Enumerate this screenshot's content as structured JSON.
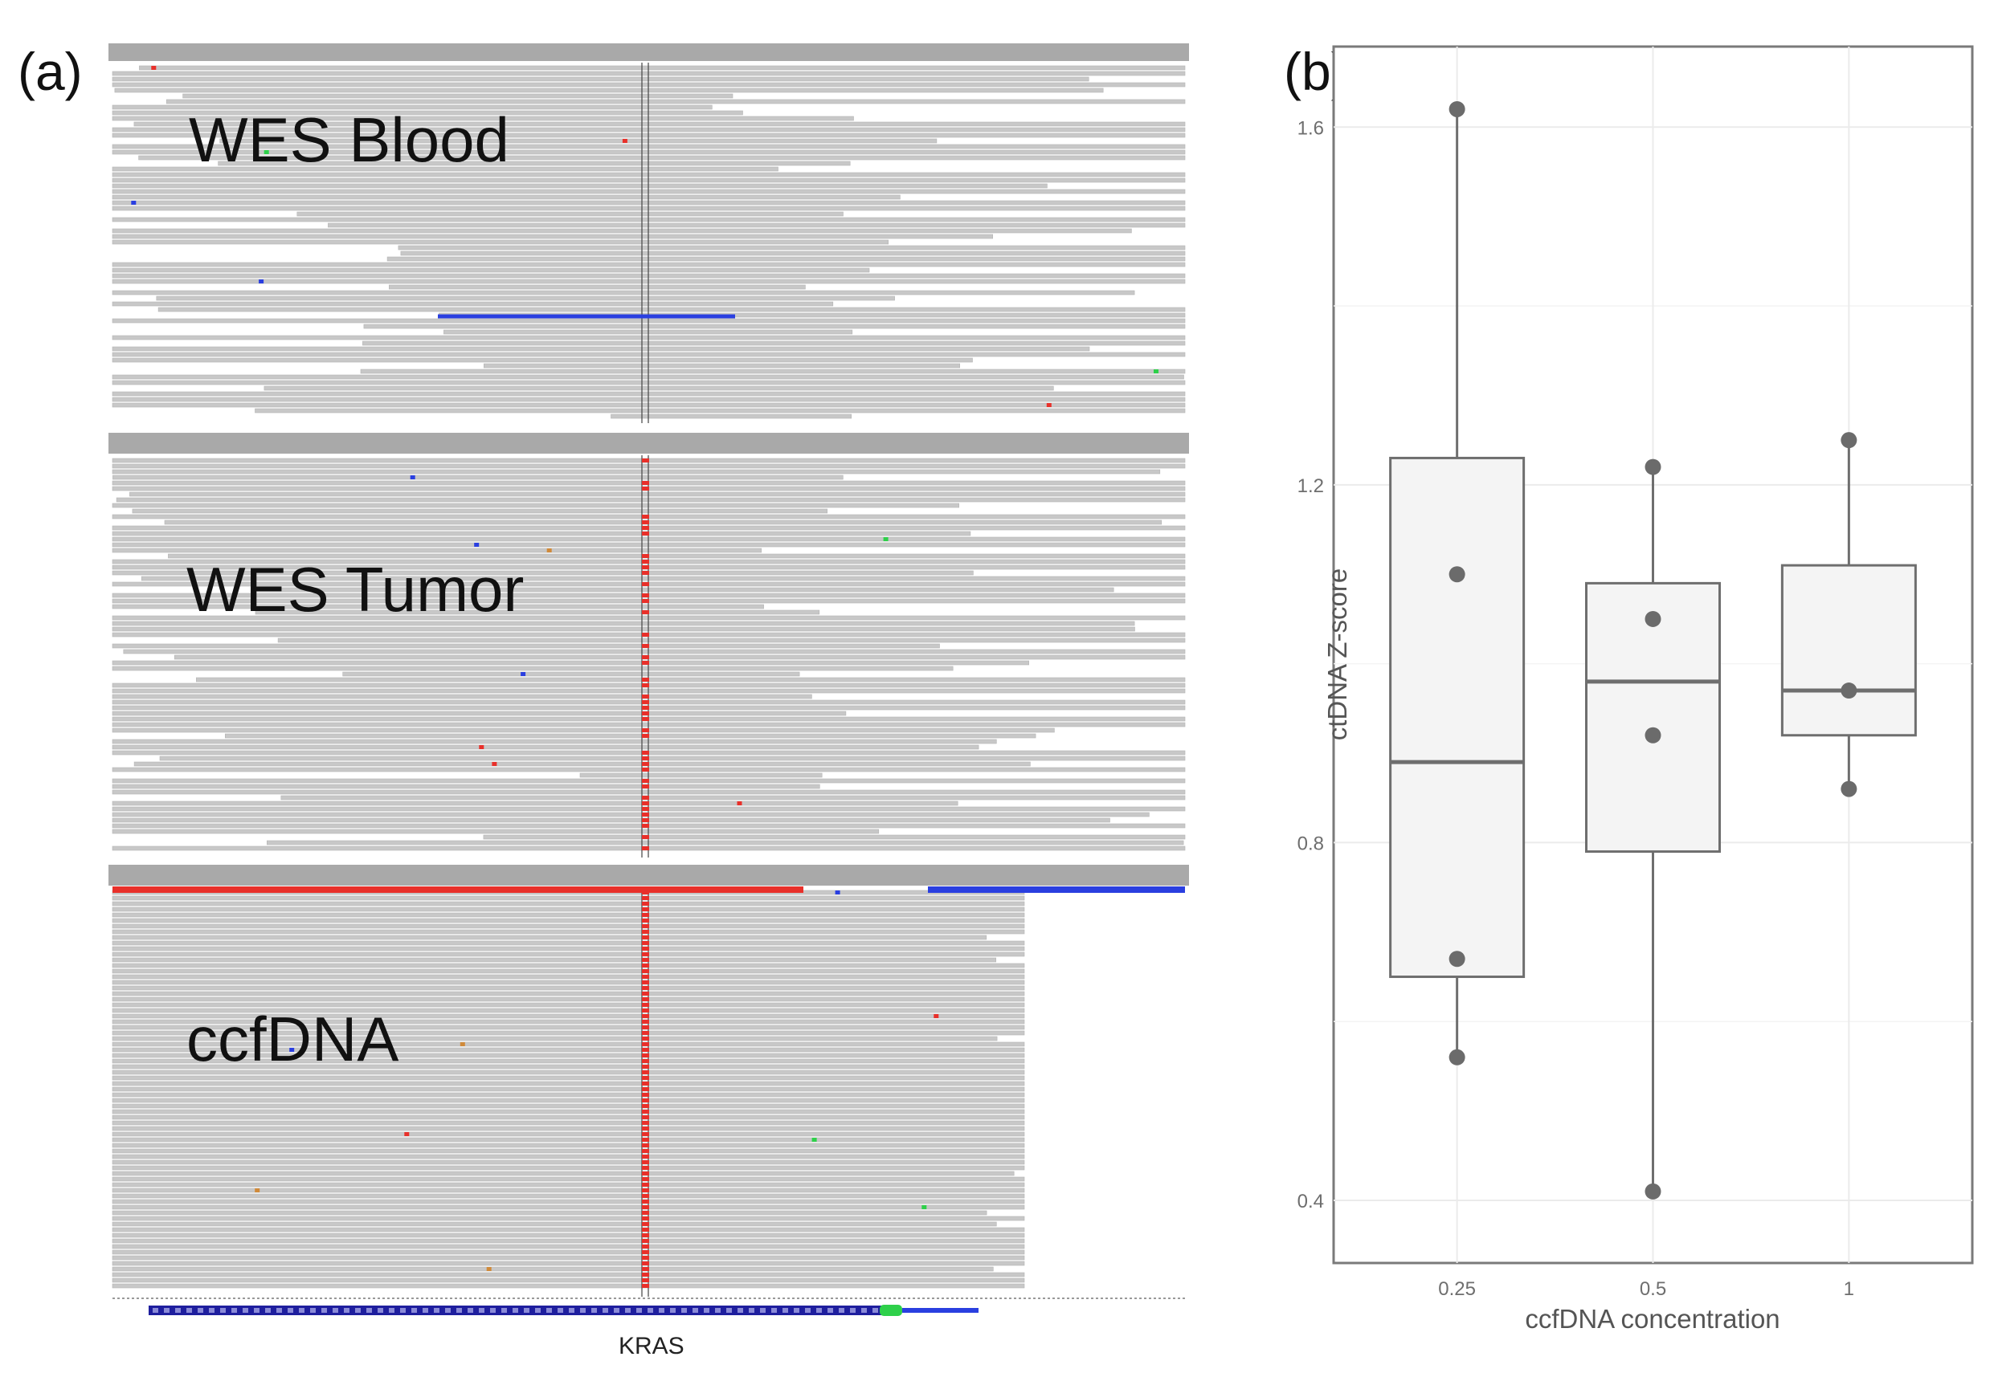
{
  "figure": {
    "panel_a_label": "(a)",
    "panel_b_label": "(b)"
  },
  "igv": {
    "tracks": [
      {
        "name": "WES Blood",
        "mutation_at_site": false
      },
      {
        "name": "WES Tumor",
        "mutation_at_site": true
      },
      {
        "name": "ccfDNA",
        "mutation_at_site": true
      }
    ],
    "gene": "KRAS",
    "colors": {
      "read": "#c8c8c8",
      "read_line": "#b4b4b4",
      "mismatch_red": "#e8302a",
      "mismatch_blue": "#2a3fe0",
      "mismatch_green": "#2ed04a",
      "mismatch_orange": "#d08a3a",
      "gene_body": "#1e1e9e"
    }
  },
  "chart_data": {
    "type": "box",
    "title": "",
    "xlabel": "ccfDNA concentration",
    "ylabel": "ctDNA Z-score",
    "categories": [
      "0.25",
      "0.5",
      "1"
    ],
    "y_ticks": [
      0.4,
      0.8,
      1.2,
      1.6
    ],
    "y_tick_labels": [
      "0.4",
      "0.8",
      "1.2",
      "1.6"
    ],
    "ylim": [
      0.33,
      1.69
    ],
    "grid": true,
    "boxes": [
      {
        "category": "0.25",
        "min": 0.56,
        "q1": 0.65,
        "median": 0.89,
        "q3": 1.23,
        "max": 1.62
      },
      {
        "category": "0.5",
        "min": 0.41,
        "q1": 0.79,
        "median": 0.98,
        "q3": 1.09,
        "max": 1.22
      },
      {
        "category": "1",
        "min": 0.86,
        "q1": 0.92,
        "median": 0.97,
        "q3": 1.11,
        "max": 1.25
      }
    ],
    "points": [
      {
        "category": "0.25",
        "values": [
          1.62,
          1.1,
          0.67,
          0.56
        ]
      },
      {
        "category": "0.5",
        "values": [
          1.22,
          1.05,
          0.92,
          0.41
        ]
      },
      {
        "category": "1",
        "values": [
          1.25,
          0.97,
          0.86
        ]
      }
    ],
    "colors": {
      "box_fill": "#f4f4f4",
      "box_stroke": "#6e6e6e",
      "point": "#6b6b6b",
      "grid": "#ebebeb",
      "frame": "#7a7a7a",
      "tick_text": "#6e6e6e"
    }
  }
}
